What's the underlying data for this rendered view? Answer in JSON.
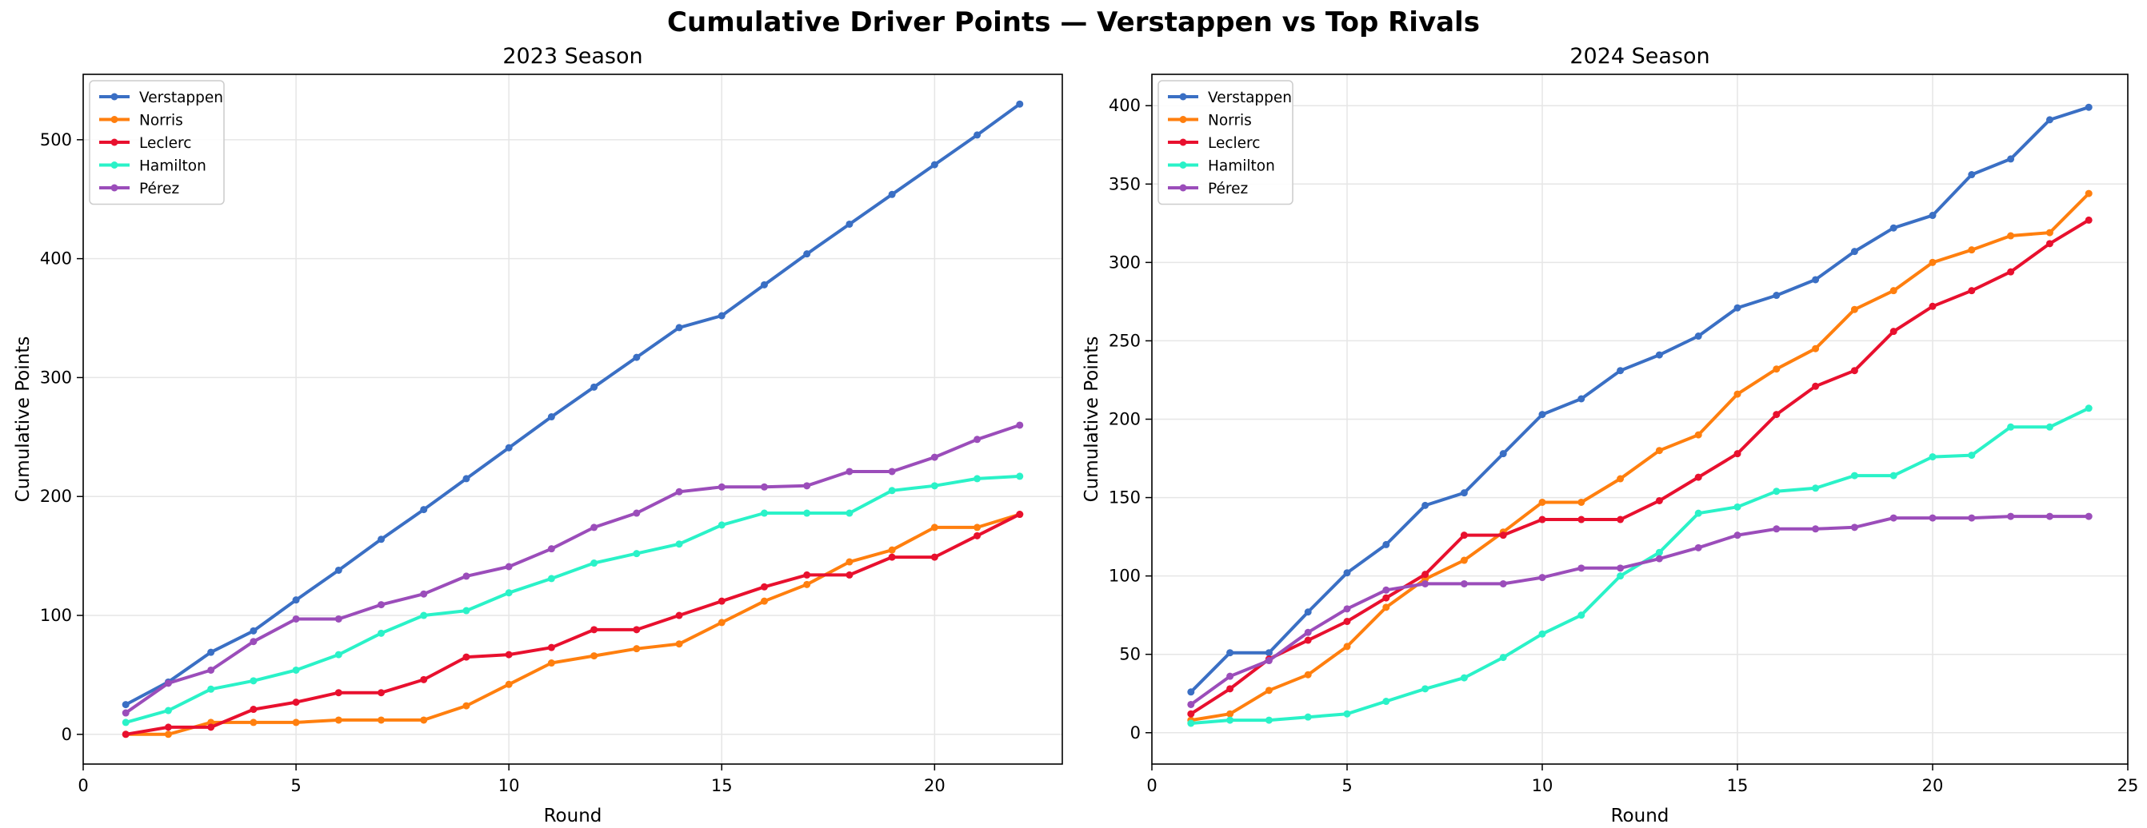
{
  "suptitle": "Cumulative Driver Points — Verstappen vs Top Rivals",
  "chart_data": [
    {
      "type": "line",
      "title": "2023 Season",
      "xlabel": "Round",
      "ylabel": "Cumulative Points",
      "xlim": [
        0,
        23
      ],
      "ylim": [
        -25,
        555
      ],
      "xticks": [
        0,
        5,
        10,
        15,
        20
      ],
      "yticks": [
        0,
        100,
        200,
        300,
        400,
        500
      ],
      "grid": true,
      "legend_position": "top-left",
      "x": [
        1,
        2,
        3,
        4,
        5,
        6,
        7,
        8,
        9,
        10,
        11,
        12,
        13,
        14,
        15,
        16,
        17,
        18,
        19,
        20,
        21,
        22
      ],
      "series": [
        {
          "name": "Verstappen",
          "color": "#3a6fc4",
          "values": [
            25,
            44,
            69,
            87,
            113,
            138,
            164,
            189,
            215,
            241,
            267,
            292,
            317,
            342,
            352,
            378,
            404,
            429,
            454,
            479,
            504,
            530
          ]
        },
        {
          "name": "Norris",
          "color": "#ff7f0e",
          "values": [
            0,
            0,
            10,
            10,
            10,
            12,
            12,
            12,
            24,
            42,
            60,
            66,
            72,
            76,
            94,
            112,
            126,
            145,
            155,
            174,
            174,
            185
          ]
        },
        {
          "name": "Leclerc",
          "color": "#e8102e",
          "values": [
            0,
            6,
            6,
            21,
            27,
            35,
            35,
            46,
            65,
            67,
            73,
            88,
            88,
            100,
            112,
            124,
            134,
            134,
            149,
            149,
            167,
            185
          ]
        },
        {
          "name": "Hamilton",
          "color": "#2af2c8",
          "values": [
            10,
            20,
            38,
            45,
            54,
            67,
            85,
            100,
            104,
            119,
            131,
            144,
            152,
            160,
            176,
            186,
            186,
            186,
            205,
            209,
            215,
            217
          ]
        },
        {
          "name": "Pérez",
          "color": "#9b4dba",
          "values": [
            18,
            43,
            54,
            78,
            97,
            97,
            109,
            118,
            133,
            141,
            156,
            174,
            186,
            204,
            208,
            208,
            209,
            221,
            221,
            233,
            248,
            260
          ]
        }
      ]
    },
    {
      "type": "line",
      "title": "2024 Season",
      "xlabel": "Round",
      "ylabel": "Cumulative Points",
      "xlim": [
        0,
        25
      ],
      "ylim": [
        -20,
        420
      ],
      "xticks": [
        0,
        5,
        10,
        15,
        20,
        25
      ],
      "yticks": [
        0,
        50,
        100,
        150,
        200,
        250,
        300,
        350,
        400
      ],
      "grid": true,
      "legend_position": "top-left",
      "x": [
        1,
        2,
        3,
        4,
        5,
        6,
        7,
        8,
        9,
        10,
        11,
        12,
        13,
        14,
        15,
        16,
        17,
        18,
        19,
        20,
        21,
        22,
        23,
        24
      ],
      "series": [
        {
          "name": "Verstappen",
          "color": "#3a6fc4",
          "values": [
            26,
            51,
            51,
            77,
            102,
            120,
            145,
            153,
            178,
            203,
            213,
            231,
            241,
            253,
            271,
            279,
            289,
            307,
            322,
            330,
            356,
            366,
            391,
            399
          ]
        },
        {
          "name": "Norris",
          "color": "#ff7f0e",
          "values": [
            8,
            12,
            27,
            37,
            55,
            80,
            98,
            110,
            128,
            147,
            147,
            162,
            180,
            190,
            216,
            232,
            245,
            270,
            282,
            300,
            308,
            317,
            319,
            344
          ]
        },
        {
          "name": "Leclerc",
          "color": "#e8102e",
          "values": [
            12,
            28,
            47,
            59,
            71,
            86,
            101,
            126,
            126,
            136,
            136,
            136,
            148,
            163,
            178,
            203,
            221,
            231,
            256,
            272,
            282,
            294,
            312,
            327
          ]
        },
        {
          "name": "Hamilton",
          "color": "#2af2c8",
          "values": [
            6,
            8,
            8,
            10,
            12,
            20,
            28,
            35,
            48,
            63,
            75,
            100,
            115,
            140,
            144,
            154,
            156,
            164,
            164,
            176,
            177,
            195,
            195,
            207
          ]
        },
        {
          "name": "Pérez",
          "color": "#9b4dba",
          "values": [
            18,
            36,
            46,
            64,
            79,
            91,
            95,
            95,
            95,
            99,
            105,
            105,
            111,
            118,
            126,
            130,
            130,
            131,
            137,
            137,
            137,
            138,
            138,
            138
          ]
        }
      ]
    }
  ]
}
